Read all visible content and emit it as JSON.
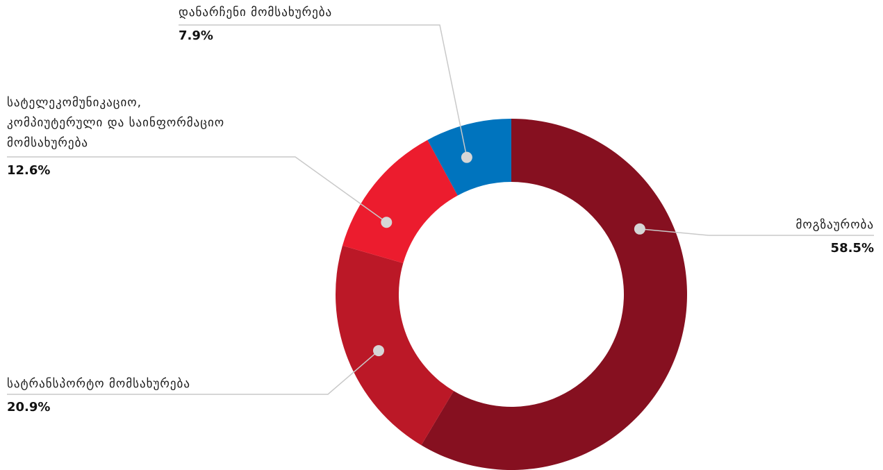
{
  "chart_data": {
    "type": "pie",
    "donut": true,
    "slices": [
      {
        "label": "მოგზაურობა",
        "label_lines": [
          "მოგზაურობა"
        ],
        "value": 58.5,
        "display": "58.5%",
        "color": "#861020"
      },
      {
        "label": "სატრანსპორტო მომსახურება",
        "label_lines": [
          "სატრანსპორტო მომსახურება"
        ],
        "value": 20.9,
        "display": "20.9%",
        "color": "#bb1827"
      },
      {
        "label": "სატელეკომუნიკაციო, კომპიუტერული და საინფორმაციო მომსახურება",
        "label_lines": [
          "სატელეკომუნიკაციო,",
          "კომპიუტერული და საინფორმაციო",
          "მომსახურება"
        ],
        "value": 12.6,
        "display": "12.6%",
        "color": "#ec1c2e"
      },
      {
        "label": "დანარჩენი მომსახურება",
        "label_lines": [
          "დანარჩენი მომსახურება"
        ],
        "value": 7.9,
        "display": "7.9%",
        "color": "#0074be"
      }
    ]
  }
}
